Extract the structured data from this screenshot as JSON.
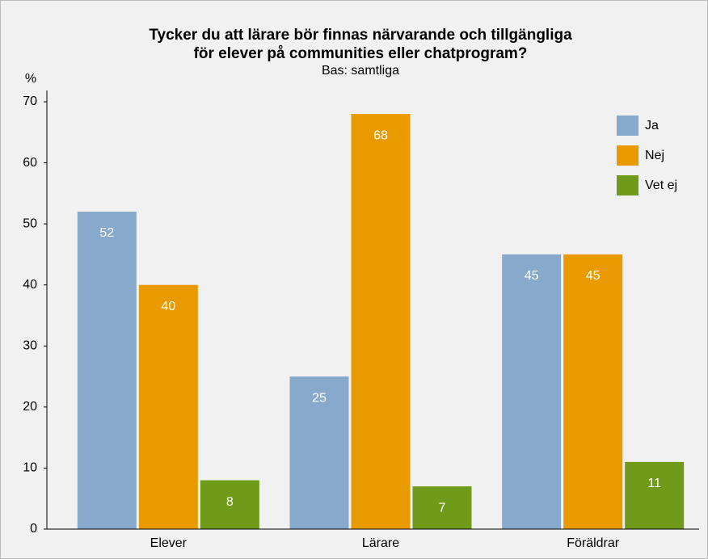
{
  "chart_data": {
    "type": "bar",
    "title": [
      "Tycker du att lärare bör finnas närvarande och tillgängliga",
      "för elever på communities eller chatprogram?"
    ],
    "subtitle": "Bas: samtliga",
    "y_label": "%",
    "categories": [
      "Elever",
      "Lärare",
      "Föräldrar"
    ],
    "series": [
      {
        "name": "Ja",
        "color": "#87a9cb",
        "values": [
          52,
          25,
          45
        ]
      },
      {
        "name": "Nej",
        "color": "#e89a00",
        "values": [
          40,
          68,
          45
        ]
      },
      {
        "name": "Vet ej",
        "color": "#6f9a1a",
        "values": [
          8,
          7,
          11
        ]
      }
    ],
    "ylim": [
      0,
      70
    ],
    "yticks": [
      0,
      10,
      20,
      30,
      40,
      50,
      60,
      70
    ],
    "legend": "upper right"
  }
}
